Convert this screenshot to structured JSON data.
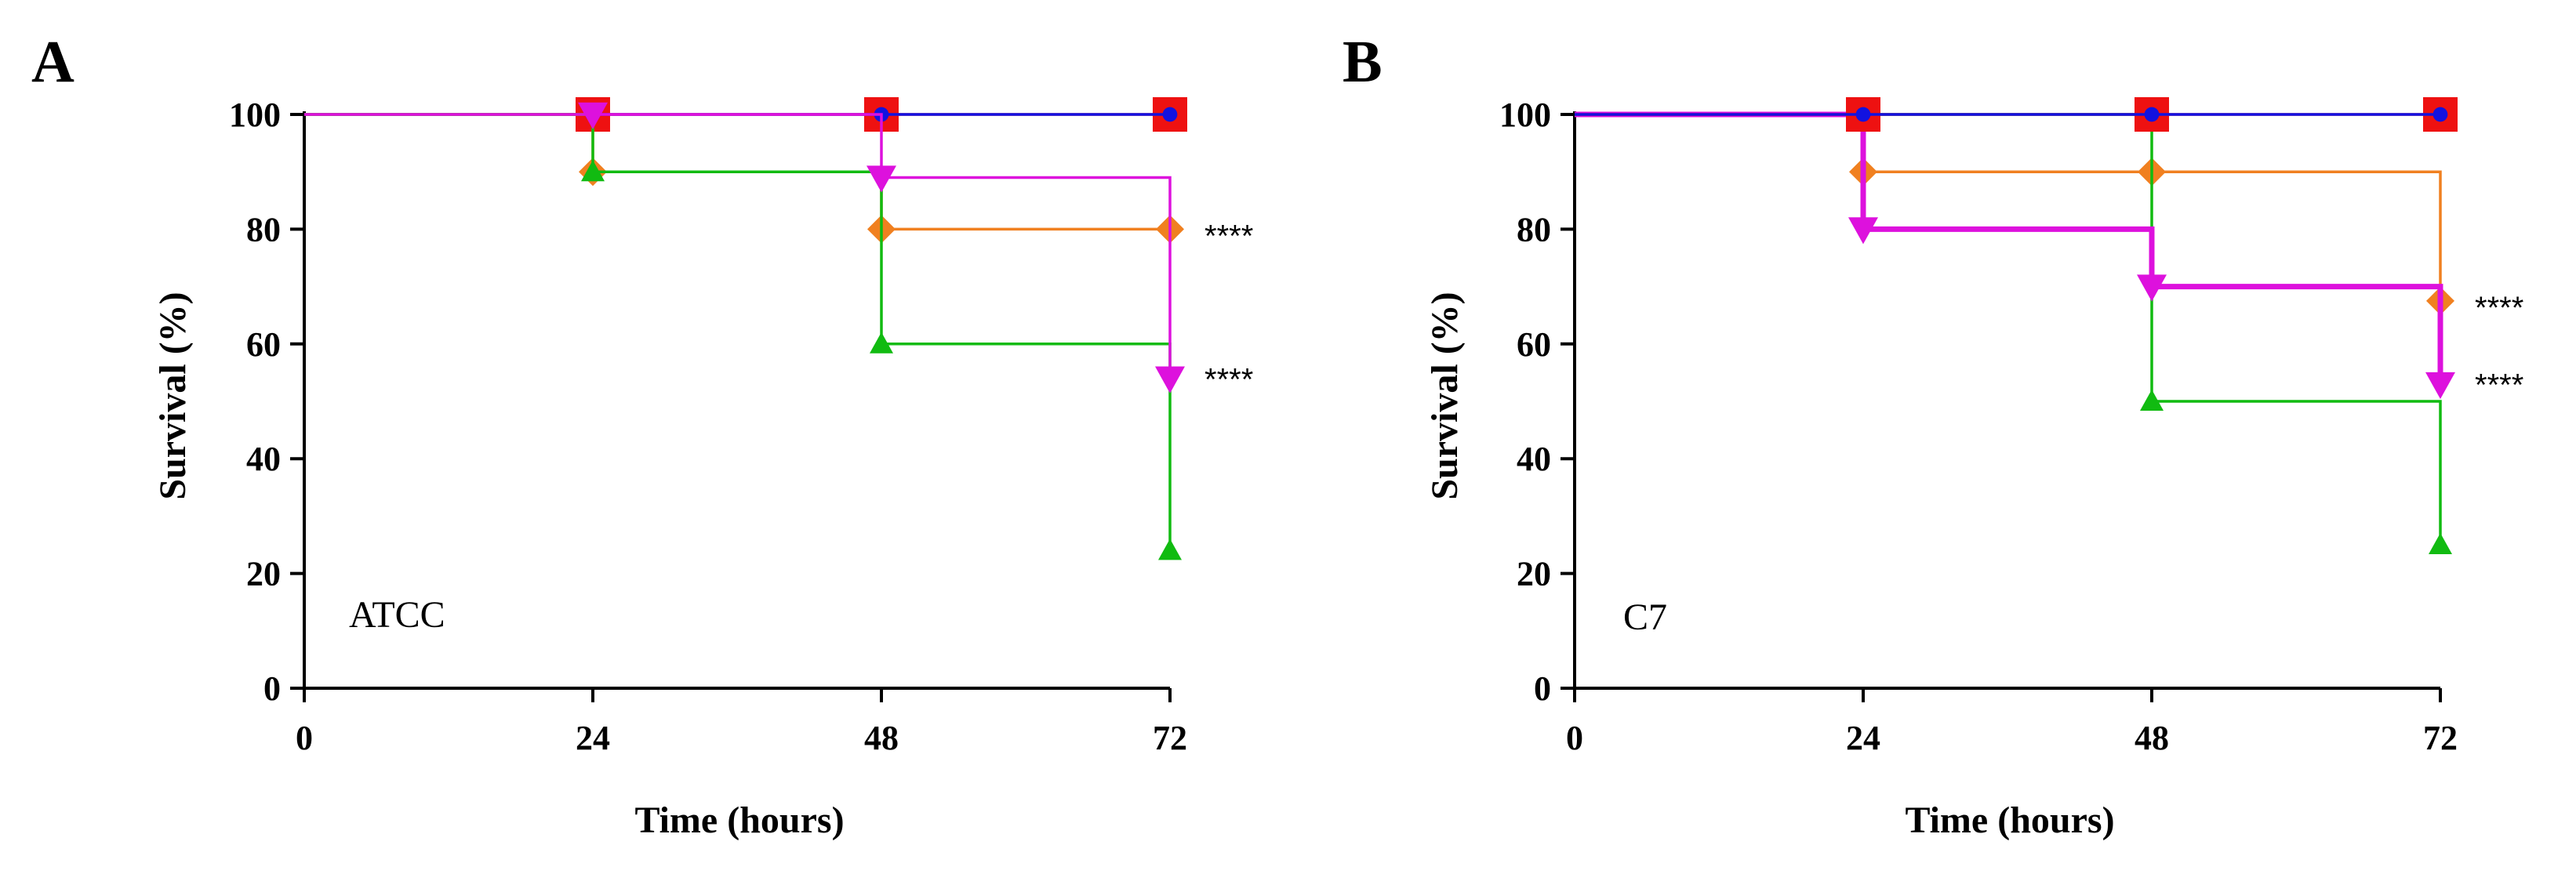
{
  "chart_data": [
    {
      "type": "line",
      "panel_letter": "A",
      "strain_label": "ATCC",
      "xlabel": "Time (hours)",
      "ylabel": "Survival (%)",
      "xlim": [
        0,
        72
      ],
      "ylim": [
        0,
        100
      ],
      "xticks": [
        0,
        24,
        48,
        72
      ],
      "yticks": [
        0,
        20,
        40,
        60,
        80,
        100
      ],
      "series": [
        {
          "name": "red-square",
          "color": "#ee1111",
          "marker": "square",
          "step": true,
          "thick": false,
          "x": [
            0,
            24,
            48,
            72
          ],
          "y": [
            100,
            100,
            100,
            100
          ]
        },
        {
          "name": "blue",
          "color": "#1212e0",
          "marker": "circle",
          "step": true,
          "thick": false,
          "x": [
            0,
            24,
            48,
            72
          ],
          "y": [
            100,
            100,
            100,
            100
          ]
        },
        {
          "name": "orange",
          "color": "#f08020",
          "marker": "diamond",
          "step": true,
          "thick": false,
          "x": [
            0,
            24,
            48,
            72
          ],
          "y": [
            100,
            90,
            80,
            80
          ]
        },
        {
          "name": "green",
          "color": "#11bb11",
          "marker": "triangle-up",
          "step": true,
          "thick": false,
          "x": [
            0,
            24,
            48,
            72
          ],
          "y": [
            100,
            90,
            60,
            24
          ]
        },
        {
          "name": "magenta",
          "color": "#dd11dd",
          "marker": "triangle-down",
          "step": true,
          "thick": false,
          "x": [
            0,
            24,
            48,
            72
          ],
          "y": [
            100,
            100,
            89,
            54
          ]
        }
      ],
      "annotations": [
        {
          "text": "****",
          "x": 72,
          "y": 80
        },
        {
          "text": "****",
          "x": 72,
          "y": 55
        }
      ]
    },
    {
      "type": "line",
      "panel_letter": "B",
      "strain_label": "C7",
      "xlabel": "Time (hours)",
      "ylabel": "Survival (%)",
      "xlim": [
        0,
        72
      ],
      "ylim": [
        0,
        100
      ],
      "xticks": [
        0,
        24,
        48,
        72
      ],
      "yticks": [
        0,
        20,
        40,
        60,
        80,
        100
      ],
      "series": [
        {
          "name": "orange",
          "color": "#f08020",
          "marker": "diamond",
          "step": true,
          "thick": false,
          "x": [
            0,
            24,
            48,
            72
          ],
          "y": [
            100,
            90,
            90,
            67.5
          ]
        },
        {
          "name": "green",
          "color": "#11bb11",
          "marker": "triangle-up",
          "step": true,
          "thick": false,
          "x": [
            0,
            24,
            48,
            72
          ],
          "y": [
            100,
            100,
            50,
            25
          ]
        },
        {
          "name": "magenta",
          "color": "#dd11dd",
          "marker": "triangle-down",
          "step": true,
          "thick": true,
          "x": [
            0,
            24,
            48,
            72
          ],
          "y": [
            100,
            80,
            70,
            53
          ]
        },
        {
          "name": "red-square",
          "color": "#ee1111",
          "marker": "square",
          "step": true,
          "thick": false,
          "x": [
            0,
            24,
            48,
            72
          ],
          "y": [
            100,
            100,
            100,
            100
          ]
        },
        {
          "name": "blue",
          "color": "#1212e0",
          "marker": "circle",
          "step": true,
          "thick": false,
          "x": [
            0,
            24,
            48,
            72
          ],
          "y": [
            100,
            100,
            100,
            100
          ]
        }
      ],
      "annotations": [
        {
          "text": "****",
          "x": 72,
          "y": 67.5
        },
        {
          "text": "****",
          "x": 72,
          "y": 54
        }
      ]
    }
  ]
}
